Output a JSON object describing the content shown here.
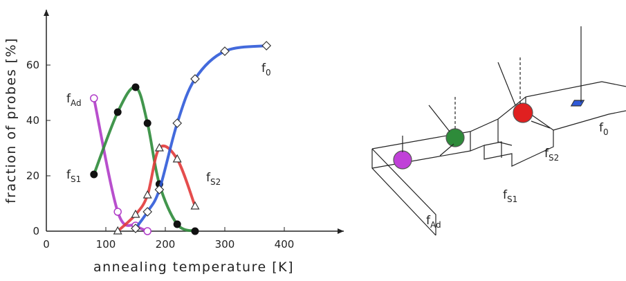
{
  "chart_data": {
    "type": "line",
    "x_label": "annealing temperature [K]",
    "y_label": "fraction of probes [%]",
    "xlim": [
      0,
      500
    ],
    "ylim": [
      0,
      80
    ],
    "xticks": [
      0,
      100,
      200,
      300,
      400
    ],
    "yticks": [
      0,
      20,
      40,
      60
    ],
    "series": [
      {
        "name": "f",
        "subscript": "Ad",
        "color": "#b03cc8",
        "marker": "open-circle",
        "x": [
          80,
          120,
          150,
          170
        ],
        "values": [
          48,
          7,
          2,
          0
        ]
      },
      {
        "name": "f",
        "subscript": "S1",
        "color": "#2e8b3a",
        "marker": "filled-circle",
        "x": [
          80,
          120,
          150,
          170,
          190,
          220,
          250
        ],
        "values": [
          20.5,
          43,
          52,
          39,
          17,
          2.5,
          0
        ]
      },
      {
        "name": "f",
        "subscript": "S2",
        "color": "#e23a3a",
        "marker": "triangle",
        "x": [
          120,
          150,
          170,
          190,
          220,
          250
        ],
        "values": [
          0,
          6,
          13,
          30,
          26,
          9
        ]
      },
      {
        "name": "f",
        "subscript": "0",
        "color": "#2f5ad8",
        "marker": "diamond",
        "x": [
          150,
          170,
          190,
          220,
          250,
          300,
          370
        ],
        "values": [
          1,
          7,
          15,
          39,
          55,
          65,
          67
        ]
      }
    ]
  },
  "diagram": {
    "labels": [
      {
        "text": "f",
        "subscript": "Ad"
      },
      {
        "text": "f",
        "subscript": "S1"
      },
      {
        "text": "f",
        "subscript": "S2"
      },
      {
        "text": "f",
        "subscript": "0"
      }
    ]
  }
}
